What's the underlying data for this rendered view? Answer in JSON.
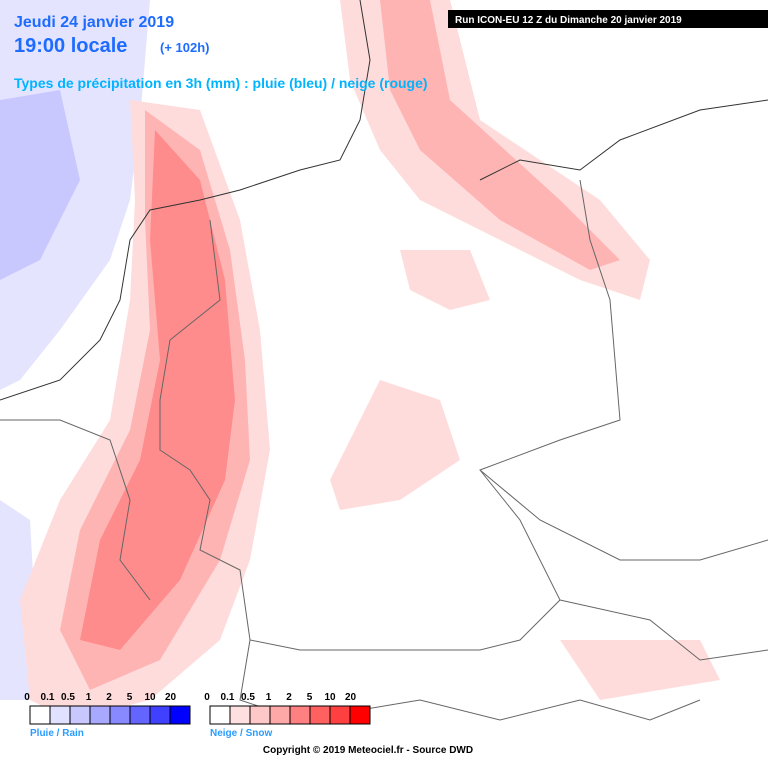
{
  "header": {
    "date": "Jeudi 24 janvier 2019",
    "time": "19:00 locale",
    "lead": "(+ 102h)",
    "subtitle": "Types de précipitation en 3h (mm) : pluie (bleu) / neige (rouge)",
    "run": "Run ICON-EU 12 Z du Dimanche 20 janvier 2019"
  },
  "legend_rain": {
    "label": "Pluie / Rain",
    "ticks": [
      "0",
      "0.1",
      "0.5",
      "1",
      "2",
      "5",
      "10",
      "20"
    ]
  },
  "legend_snow": {
    "label": "Neige / Snow",
    "ticks": [
      "0",
      "0.1",
      "0.5",
      "1",
      "2",
      "5",
      "10",
      "20"
    ]
  },
  "footer": "Copyright © 2019 Meteociel.fr - Source DWD"
}
